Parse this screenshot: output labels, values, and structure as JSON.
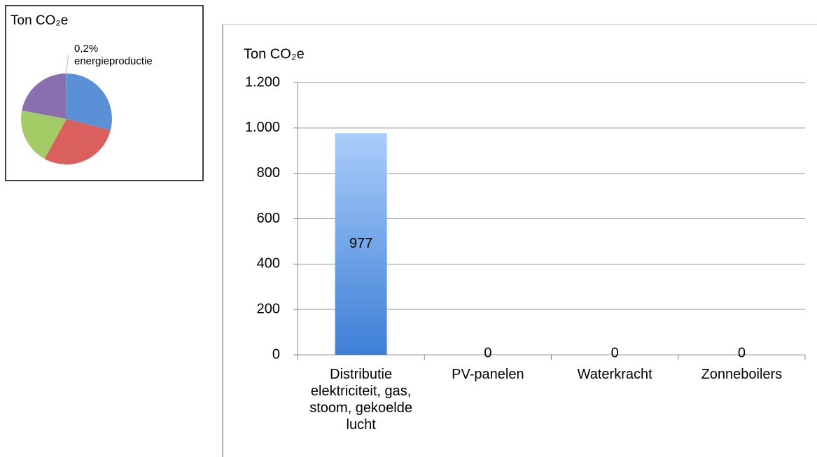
{
  "chart_data": [
    {
      "type": "pie",
      "title": "Ton CO₂e",
      "categories": [
        null,
        null,
        null,
        null,
        "energieproductie"
      ],
      "values": [
        29,
        29,
        20,
        21.8,
        0.2
      ],
      "value_labels": [
        null,
        null,
        null,
        null,
        "0,2%"
      ],
      "colors": [
        "#5b8fd6",
        "#d9605d",
        "#a3cc66",
        "#8a6fb0",
        "#5ec3dd"
      ]
    },
    {
      "type": "bar",
      "y_label": "Ton CO₂e",
      "categories": [
        "Distributie elektriciteit, gas, stoom, gekoelde lucht",
        "PV-panelen",
        "Waterkracht",
        "Zonneboilers"
      ],
      "values": [
        977,
        0,
        0,
        0
      ],
      "color": "#5b9be8",
      "ylim": [
        0,
        1200
      ],
      "yticks": [
        0,
        200,
        400,
        600,
        800,
        {
          "value": 1000,
          "label": "1.000"
        },
        {
          "value": 1200,
          "label": "1.200"
        }
      ],
      "grid": true
    }
  ]
}
